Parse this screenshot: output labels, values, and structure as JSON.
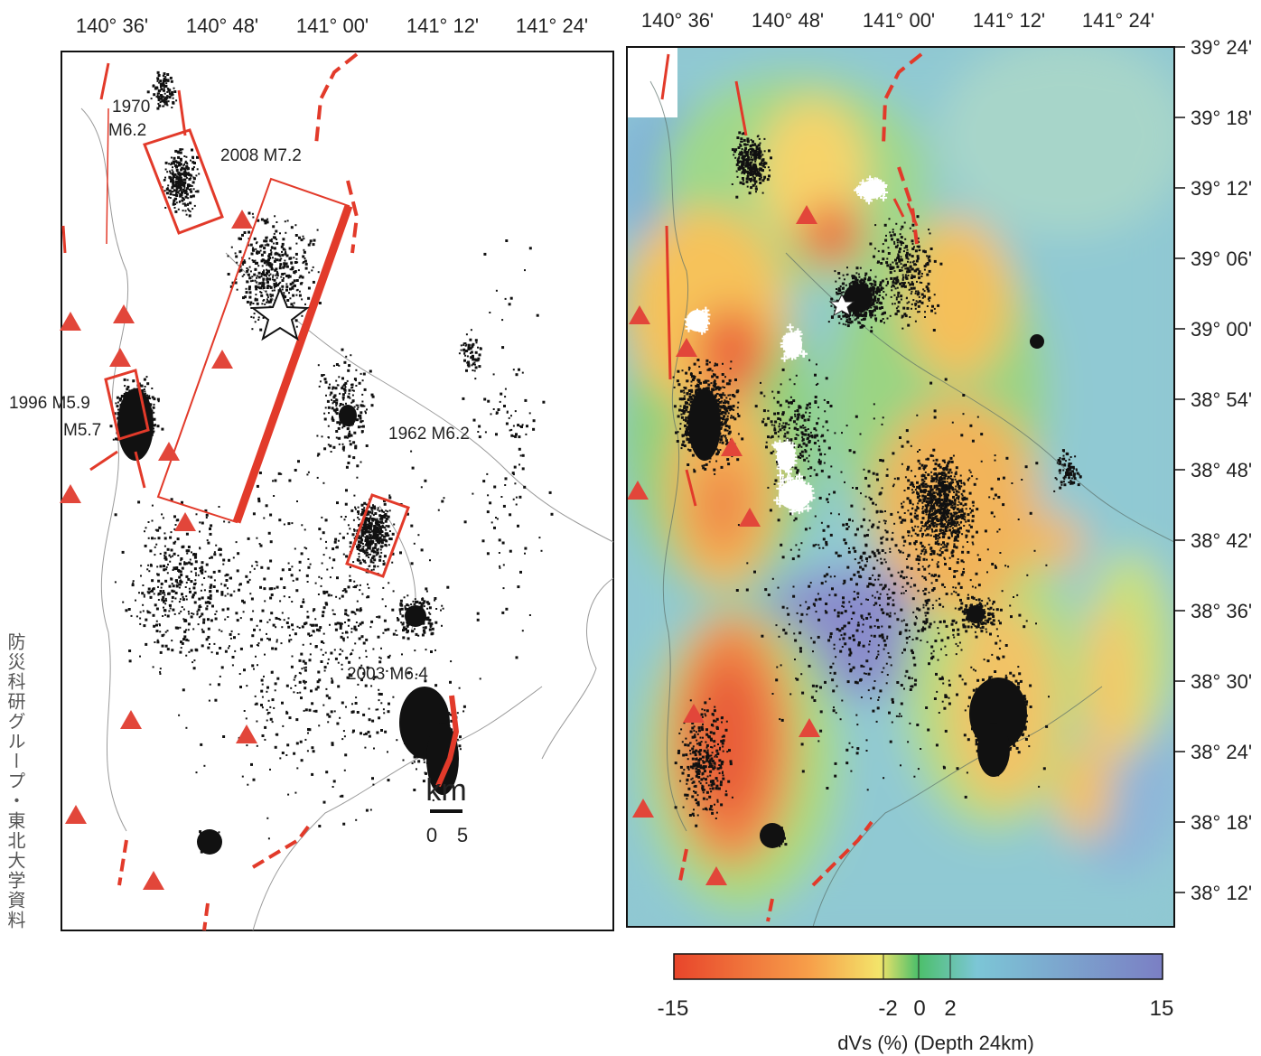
{
  "left_map": {
    "top_ticks": [
      "140° 36'",
      "140° 48'",
      "141° 00'",
      "141° 12'",
      "141° 24'"
    ],
    "annotations": {
      "eq_1970_year": "1970",
      "eq_1970_mag": "M6.2",
      "eq_2008": "2008 M7.2",
      "eq_1996_a": "1996 M5.9",
      "eq_1996_b": "M5.7",
      "eq_1962": "1962 M6.2",
      "eq_2003": "2003 M6.4"
    },
    "scale_bar": {
      "unit": "km",
      "zero": "0",
      "five": "5"
    }
  },
  "right_map": {
    "top_ticks": [
      "140° 36'",
      "140° 48'",
      "141° 00'",
      "141° 12'",
      "141° 24'"
    ],
    "right_ticks": [
      "39° 24'",
      "39° 18'",
      "39° 12'",
      "39° 06'",
      "39° 00'",
      "38° 54'",
      "38° 48'",
      "38° 42'",
      "38° 36'",
      "38° 30'",
      "38° 24'",
      "38° 18'",
      "38° 12'"
    ]
  },
  "colorbar": {
    "labels": [
      "-15",
      "-2",
      "0",
      "2",
      "15"
    ],
    "caption": "dVs (%) (Depth 24km)",
    "colors": [
      "#e8452b",
      "#f7a04a",
      "#f3e46a",
      "#4cbf6a",
      "#7cc6d6",
      "#7b7fc4"
    ]
  },
  "side_note": "防災科研グループ・東北大学資料",
  "colors": {
    "fault": "#e23a2a",
    "volcano": "#e2463a",
    "quake_dot": "#111111"
  }
}
